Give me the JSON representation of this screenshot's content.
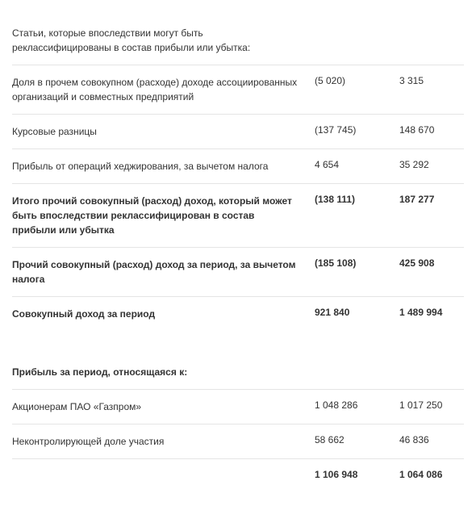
{
  "rows": [
    {
      "label": "Статьи, которые впоследствии могут быть реклассифицированы в состав прибыли или убытка:",
      "col1": "",
      "col2": "",
      "bold": false
    },
    {
      "label": "Доля в прочем совокупном (расходе) доходе ассоциированных организаций и совместных предприятий",
      "col1": "(5 020)",
      "col2": "3 315",
      "bold": false
    },
    {
      "label": "Курсовые разницы",
      "col1": "(137 745)",
      "col2": "148 670",
      "bold": false
    },
    {
      "label": "Прибыль от операций хеджирования, за вычетом налога",
      "col1": "4 654",
      "col2": "35 292",
      "bold": false
    },
    {
      "label": "Итого прочий совокупный (расход) доход, который может быть впоследствии реклассифицирован в состав прибыли или убытка",
      "col1": "(138 111)",
      "col2": "187 277",
      "bold": true
    },
    {
      "label": "Прочий совокупный (расход) доход за период, за вычетом налога",
      "col1": "(185 108)",
      "col2": "425 908",
      "bold": true
    },
    {
      "label": "Совокупный доход за период",
      "col1": "921 840",
      "col2": "1 489 994",
      "bold": true
    }
  ],
  "section2_header": "Прибыль за период, относящаяся к:",
  "rows2": [
    {
      "label": "Акционерам ПАО «Газпром»",
      "col1": "1 048 286",
      "col2": "1 017 250",
      "bold": false
    },
    {
      "label": "Неконтролирующей доле участия",
      "col1": "58 662",
      "col2": "46 836",
      "bold": false
    },
    {
      "label": "",
      "col1": "1 106 948",
      "col2": "1 064 086",
      "bold": true
    }
  ]
}
